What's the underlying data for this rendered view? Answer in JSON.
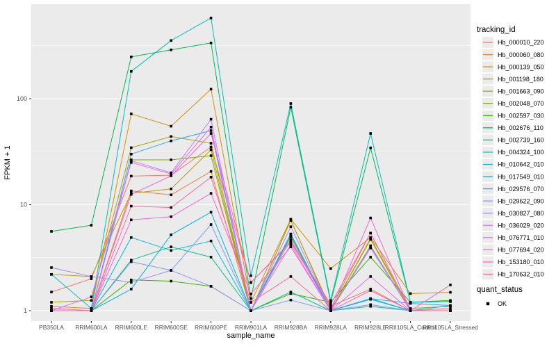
{
  "chart_data": {
    "type": "line",
    "title": "",
    "xlabel": "sample_name",
    "ylabel": "FPKM + 1",
    "y_scale": "log10",
    "y_ticks": [
      1,
      10,
      100
    ],
    "y_minor_ticks": [
      3.162,
      31.62,
      316.2
    ],
    "ylim_log": [
      -0.1,
      2.89
    ],
    "grid": true,
    "panel_bg": "#EBEBEB",
    "grid_color": "#FFFFFF",
    "point_color": "#000000",
    "axis_text_color": "#4D4D4D",
    "axis_title_color": "#000000",
    "categories": [
      "PB350LA",
      "RRIM600LA",
      "RRIM600LE",
      "RRIM600SE",
      "RRIM600PE",
      "RRIM901LA",
      "RRIM928BA",
      "RRIM928LA",
      "RRIM928LE",
      "RRII105LA_Control",
      "RRII105LA_Stressed"
    ],
    "legend": {
      "title": "tracking_id",
      "position": "right"
    },
    "quant_legend": {
      "title": "quant_status",
      "items": [
        {
          "label": "OK",
          "marker": "black-square"
        }
      ]
    },
    "series": [
      {
        "name": "Hb_000010_220",
        "color": "#F8766D",
        "values": [
          1.5,
          2.0,
          18.6,
          19.0,
          35,
          1.85,
          4.4,
          1.1,
          1.6,
          1.0,
          1.05
        ]
      },
      {
        "name": "Hb_000060_080",
        "color": "#EA8331",
        "values": [
          1.0,
          1.0,
          13.5,
          12.4,
          20.6,
          1.0,
          7.1,
          1.05,
          5.4,
          1.0,
          1.0
        ]
      },
      {
        "name": "Hb_000139_050",
        "color": "#D89000",
        "values": [
          1.1,
          1.05,
          72,
          55,
          123,
          1.2,
          7.3,
          2.5,
          4.9,
          1.45,
          1.49
        ]
      },
      {
        "name": "Hb_001198_180",
        "color": "#C09B00",
        "values": [
          2.2,
          2.1,
          12.8,
          14.1,
          33,
          1.0,
          5.0,
          1.0,
          4.7,
          1.0,
          1.0
        ]
      },
      {
        "name": "Hb_001663_090",
        "color": "#A3A500",
        "values": [
          1.2,
          1.25,
          34.5,
          44,
          38,
          1.0,
          7.2,
          1.0,
          4.8,
          1.05,
          1.1
        ]
      },
      {
        "name": "Hb_002048_070",
        "color": "#7CAE00",
        "values": [
          1.0,
          1.0,
          26.5,
          26.5,
          29,
          1.0,
          5.0,
          1.0,
          4.1,
          1.0,
          1.0
        ]
      },
      {
        "name": "Hb_002597_030",
        "color": "#39B600",
        "values": [
          1.0,
          1.0,
          1.95,
          1.9,
          1.7,
          1.0,
          1.45,
          1.2,
          3.2,
          1.2,
          1.25
        ]
      },
      {
        "name": "Hb_002676_110",
        "color": "#00BB4E",
        "values": [
          5.6,
          6.4,
          248,
          289,
          336,
          1.3,
          83,
          1.2,
          34.4,
          1.2,
          1.22
        ]
      },
      {
        "name": "Hb_002739_160",
        "color": "#00C087",
        "values": [
          1.0,
          1.0,
          3.0,
          4.0,
          3.2,
          1.0,
          1.5,
          1.0,
          1.1,
          1.0,
          1.0
        ]
      },
      {
        "name": "Hb_004324_100",
        "color": "#00C0B4",
        "values": [
          2.2,
          1.05,
          181,
          354,
          577,
          2.14,
          90,
          1.25,
          47,
          1.2,
          1.22
        ]
      },
      {
        "name": "Hb_010642_010",
        "color": "#00BCD6",
        "values": [
          1.0,
          1.0,
          4.9,
          3.7,
          4.55,
          1.0,
          5.2,
          1.0,
          1.3,
          1.0,
          1.0
        ]
      },
      {
        "name": "Hb_017549_010",
        "color": "#00B2F3",
        "values": [
          1.0,
          1.0,
          1.6,
          5.2,
          8.5,
          1.0,
          5.3,
          1.0,
          1.28,
          1.0,
          1.12
        ]
      },
      {
        "name": "Hb_029576_070",
        "color": "#2EA3FF",
        "values": [
          1.0,
          1.0,
          30,
          40,
          50,
          1.0,
          5.2,
          1.0,
          1.3,
          1.17,
          1.12
        ]
      },
      {
        "name": "Hb_029622_090",
        "color": "#7D99FF",
        "values": [
          1.0,
          1.0,
          2.9,
          2.4,
          6.5,
          1.0,
          1.26,
          1.0,
          1.14,
          1.0,
          1.0
        ]
      },
      {
        "name": "Hb_030827_080",
        "color": "#9E8FFF",
        "values": [
          2.55,
          2.1,
          1.85,
          2.4,
          1.7,
          1.0,
          6.2,
          1.0,
          3.9,
          1.0,
          1.0
        ]
      },
      {
        "name": "Hb_036029_020",
        "color": "#C67BFF",
        "values": [
          1.0,
          1.0,
          26,
          20,
          64,
          1.0,
          4.7,
          1.0,
          4.0,
          1.0,
          1.0
        ]
      },
      {
        "name": "Hb_076771_010",
        "color": "#E36EF6",
        "values": [
          1.0,
          1.35,
          25,
          19.5,
          54,
          1.0,
          4.2,
          1.0,
          2.1,
          1.0,
          1.0
        ]
      },
      {
        "name": "Hb_077694_020",
        "color": "#F763DF",
        "values": [
          1.0,
          1.0,
          7.2,
          7.7,
          12.8,
          1.44,
          4.0,
          1.0,
          7.5,
          1.0,
          1.0
        ]
      },
      {
        "name": "Hb_153180_010",
        "color": "#FF61C7",
        "values": [
          1.05,
          1.0,
          12.5,
          18.7,
          47,
          1.84,
          4.5,
          1.15,
          5.4,
          1.0,
          1.75
        ]
      },
      {
        "name": "Hb_170632_010",
        "color": "#FF6A9E",
        "values": [
          1.0,
          1.0,
          9.7,
          9.4,
          18.2,
          1.2,
          2.1,
          1.0,
          1.55,
          1.0,
          1.0
        ]
      }
    ]
  }
}
